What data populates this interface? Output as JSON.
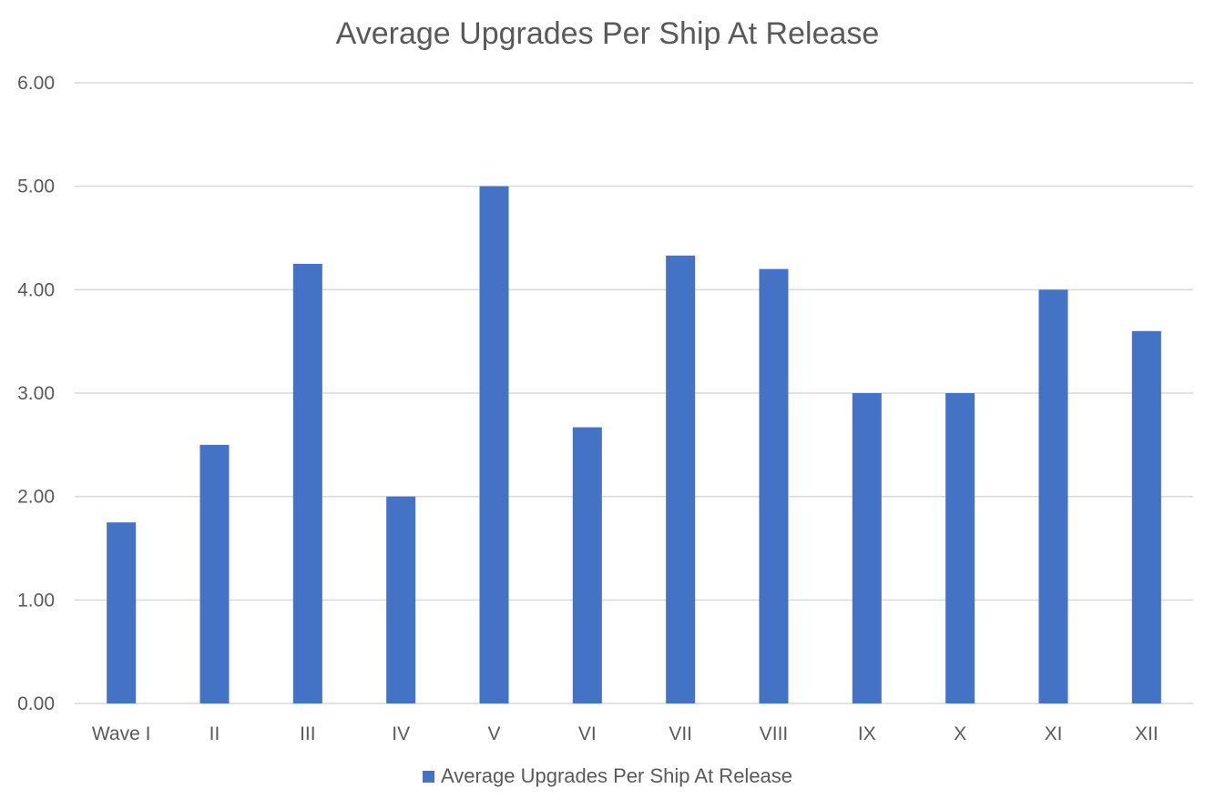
{
  "chart_data": {
    "type": "bar",
    "title": "Average Upgrades Per Ship At Release",
    "categories": [
      "Wave I",
      "II",
      "III",
      "IV",
      "V",
      "VI",
      "VII",
      "VIII",
      "IX",
      "X",
      "XI",
      "XII"
    ],
    "series": [
      {
        "name": "Average Upgrades Per Ship At Release",
        "values": [
          1.75,
          2.5,
          4.25,
          2.0,
          5.0,
          2.67,
          4.33,
          4.2,
          3.0,
          3.0,
          4.0,
          3.6
        ],
        "color": "#4472C4"
      }
    ],
    "ylim": [
      0,
      6
    ],
    "yticks": [
      "0.00",
      "1.00",
      "2.00",
      "3.00",
      "4.00",
      "5.00",
      "6.00"
    ],
    "grid": true,
    "legend_position": "bottom",
    "gridline_color": "#D9D9D9"
  }
}
